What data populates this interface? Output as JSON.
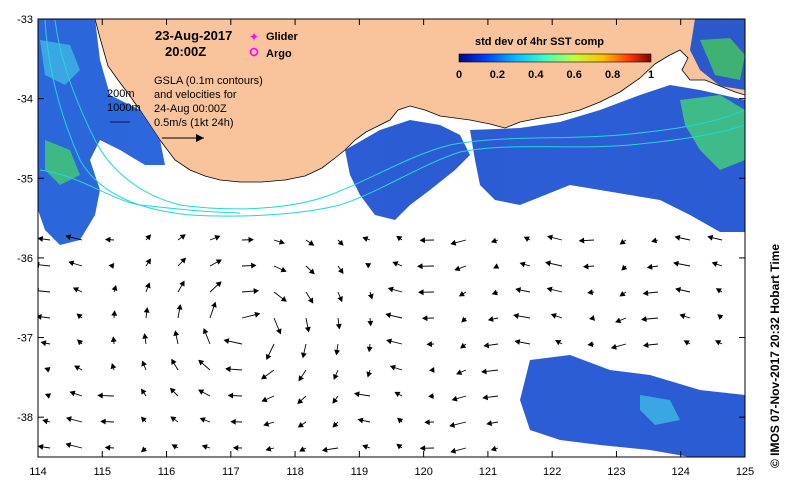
{
  "map": {
    "lon_range": [
      114,
      125
    ],
    "lat_range": [
      -38.5,
      -33
    ],
    "x_ticks": [
      114,
      115,
      116,
      117,
      118,
      119,
      120,
      121,
      122,
      123,
      124,
      125
    ],
    "y_ticks": [
      -33,
      -34,
      -35,
      -36,
      -37,
      -38
    ],
    "x_tick_labels": [
      "114",
      "115",
      "116",
      "117",
      "118",
      "119",
      "120",
      "121",
      "122",
      "123",
      "124",
      "125"
    ],
    "y_tick_labels": [
      "-33",
      "-34",
      "-35",
      "-36",
      "-37",
      "-38"
    ],
    "land_color": "#f9c49b",
    "contour_color": "#22d7d7"
  },
  "header": {
    "date": "23-Aug-2017",
    "time": "20:00Z"
  },
  "legend": {
    "glider_label": "Glider",
    "argo_label": "Argo",
    "glider_color": "#ff00ff",
    "argo_color": "#ff00ff"
  },
  "gsla_note": {
    "line1": "GSLA (0.1m contours)",
    "line2": "and velocities for",
    "line3": "24-Aug 00:00Z",
    "scale_label": "0.5m/s (1kt 24h)"
  },
  "depth_labels": {
    "shallow": "200m",
    "deep": "1000m"
  },
  "colorbar": {
    "title": "std dev of 4hr SST comp",
    "tick_labels": [
      "0",
      "0.2",
      "0.4",
      "0.6",
      "0.8",
      "1"
    ],
    "range": [
      0,
      1
    ],
    "stops": [
      "#00008f",
      "#0040ff",
      "#00c0ff",
      "#40ffbf",
      "#bfff40",
      "#ffc000",
      "#ff4000",
      "#800000"
    ]
  },
  "credit": "© IMOS 07-Nov-2017 20:32 Hobart Time"
}
